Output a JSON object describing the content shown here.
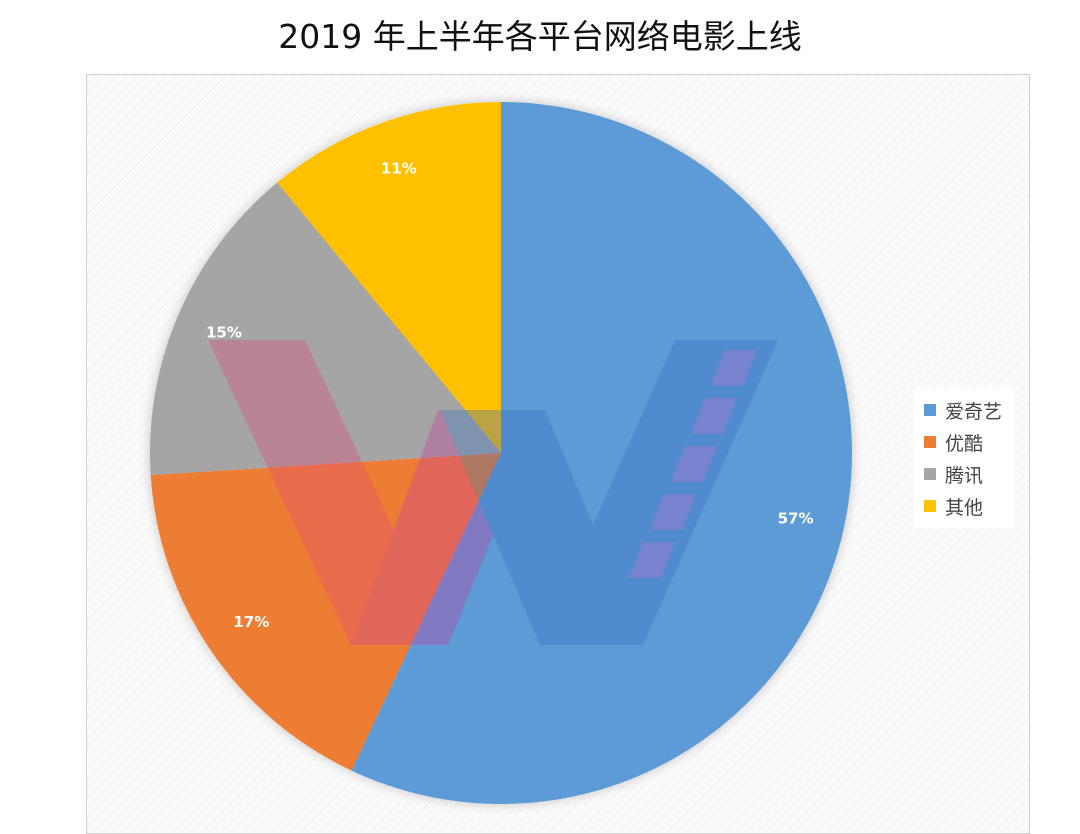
{
  "chart_data": {
    "type": "pie",
    "title": "2019 年上半年各平台网络电影上线",
    "slices": [
      {
        "name": "爱奇艺",
        "value": 57,
        "label": "57%",
        "color": "#5B9BD5"
      },
      {
        "name": "优酷",
        "value": 17,
        "label": "17%",
        "color": "#ED7D31"
      },
      {
        "name": "腾讯",
        "value": 15,
        "label": "15%",
        "color": "#A5A5A5"
      },
      {
        "name": "其他",
        "value": 11,
        "label": "11%",
        "color": "#FFC000"
      }
    ],
    "start_angle_deg": 0,
    "direction": "clockwise",
    "legend_position": "right"
  }
}
